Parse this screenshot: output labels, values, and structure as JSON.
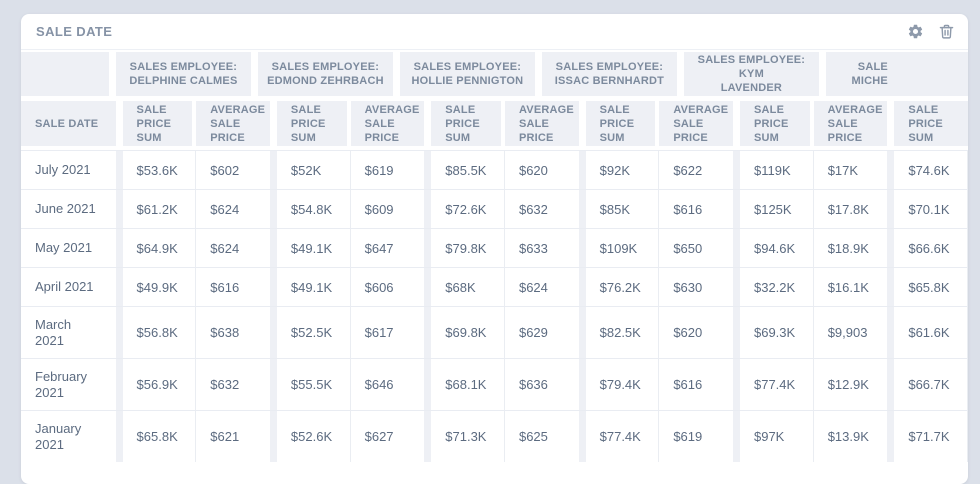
{
  "colors": {
    "page_bg": "#dbe0e9",
    "card_bg": "#ffffff",
    "header_chip_bg": "#eef0f5",
    "header_text": "#7c8a9d",
    "data_text": "#5c6b80",
    "icon": "#8e9aab",
    "title_text": "#8693a6"
  },
  "widget": {
    "title": "SALE DATE",
    "toolbar": [
      {
        "icon": "gear-icon"
      },
      {
        "icon": "trash-icon"
      }
    ]
  },
  "table": {
    "row_header_label": "SALE DATE",
    "groups": [
      {
        "label": "SALES EMPLOYEE:\nDELPHINE CALMES",
        "truncated": false,
        "sub_columns": [
          "SALE\nPRICE\nSUM",
          "AVERAGE\nSALE\nPRICE"
        ]
      },
      {
        "label": "SALES EMPLOYEE:\nEDMOND ZEHRBACH",
        "truncated": false,
        "sub_columns": [
          "SALE\nPRICE\nSUM",
          "AVERAGE\nSALE\nPRICE"
        ]
      },
      {
        "label": "SALES EMPLOYEE:\nHOLLIE PENNIGTON",
        "truncated": false,
        "sub_columns": [
          "SALE\nPRICE\nSUM",
          "AVERAGE\nSALE\nPRICE"
        ]
      },
      {
        "label": "SALES EMPLOYEE:\nISSAC BERNHARDT",
        "truncated": false,
        "sub_columns": [
          "SALE\nPRICE\nSUM",
          "AVERAGE\nSALE\nPRICE"
        ]
      },
      {
        "label": "SALES EMPLOYEE: KYM\nLAVENDER",
        "truncated": false,
        "sub_columns": [
          "SALE\nPRICE\nSUM",
          "AVERAGE\nSALE\nPRICE"
        ]
      },
      {
        "label": "SALE\nMICHE",
        "truncated": true,
        "sub_columns": [
          "SALE\nPRICE\nSUM"
        ]
      }
    ],
    "rows": [
      {
        "date": "July 2021",
        "cells": [
          "$53.6K",
          "$602",
          "$52K",
          "$619",
          "$85.5K",
          "$620",
          "$92K",
          "$622",
          "$119K",
          "$17K",
          "$74.6K"
        ]
      },
      {
        "date": "June 2021",
        "cells": [
          "$61.2K",
          "$624",
          "$54.8K",
          "$609",
          "$72.6K",
          "$632",
          "$85K",
          "$616",
          "$125K",
          "$17.8K",
          "$70.1K"
        ]
      },
      {
        "date": "May 2021",
        "cells": [
          "$64.9K",
          "$624",
          "$49.1K",
          "$647",
          "$79.8K",
          "$633",
          "$109K",
          "$650",
          "$94.6K",
          "$18.9K",
          "$66.6K"
        ]
      },
      {
        "date": "April 2021",
        "cells": [
          "$49.9K",
          "$616",
          "$49.1K",
          "$606",
          "$68K",
          "$624",
          "$76.2K",
          "$630",
          "$32.2K",
          "$16.1K",
          "$65.8K"
        ]
      },
      {
        "date": "March\n2021",
        "cells": [
          "$56.8K",
          "$638",
          "$52.5K",
          "$617",
          "$69.8K",
          "$629",
          "$82.5K",
          "$620",
          "$69.3K",
          "$9,903",
          "$61.6K"
        ]
      },
      {
        "date": "February\n2021",
        "cells": [
          "$56.9K",
          "$632",
          "$55.5K",
          "$646",
          "$68.1K",
          "$636",
          "$79.4K",
          "$616",
          "$77.4K",
          "$12.9K",
          "$66.7K"
        ]
      },
      {
        "date": "January\n2021",
        "cells": [
          "$65.8K",
          "$621",
          "$52.6K",
          "$627",
          "$71.3K",
          "$625",
          "$77.4K",
          "$619",
          "$97K",
          "$13.9K",
          "$71.7K"
        ]
      }
    ]
  }
}
